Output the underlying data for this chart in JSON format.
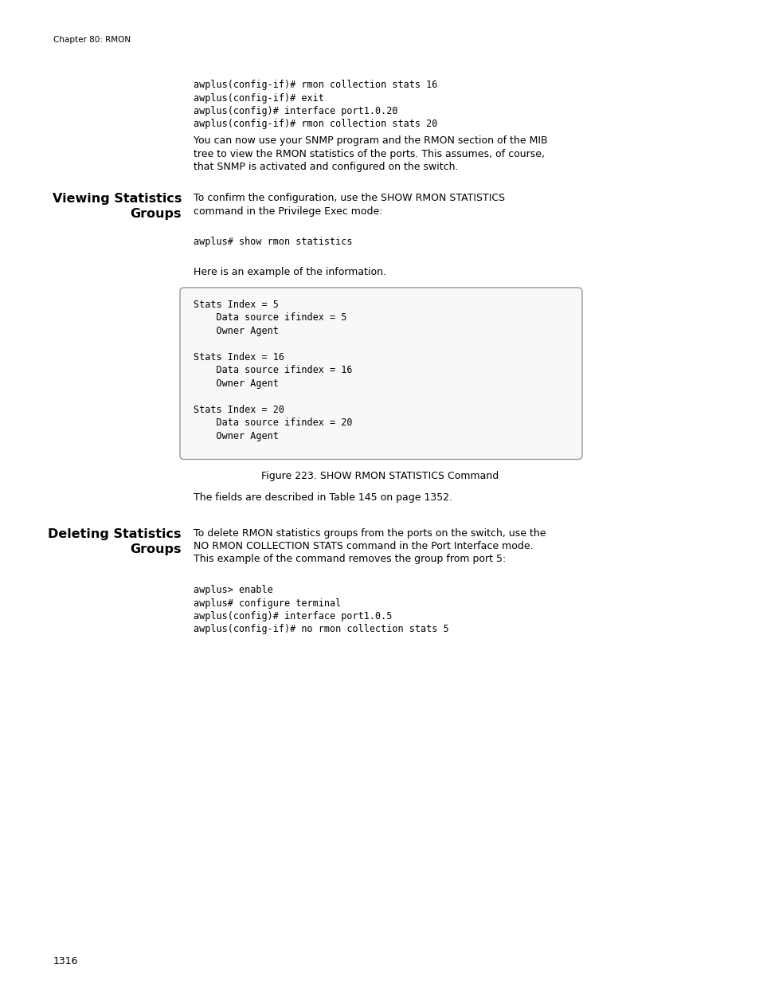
{
  "bg_color": "#ffffff",
  "page_width": 9.54,
  "page_height": 12.35,
  "dpi": 100,
  "chapter_header": "Chapter 80: RMON",
  "top_code_lines": [
    "awplus(config-if)# rmon collection stats 16",
    "awplus(config-if)# exit",
    "awplus(config)# interface port1.0.20",
    "awplus(config-if)# rmon collection stats 20"
  ],
  "para1_lines": [
    "You can now use your SNMP program and the RMON section of the MIB",
    "tree to view the RMON statistics of the ports. This assumes, of course,",
    "that SNMP is activated and configured on the switch."
  ],
  "section1_heading1": "Viewing Statistics",
  "section1_heading2": "Groups",
  "section1_para_lines": [
    "To confirm the configuration, use the SHOW RMON STATISTICS",
    "command in the Privilege Exec mode:"
  ],
  "show_cmd_line": "awplus# show rmon statistics",
  "here_text": "Here is an example of the information.",
  "box_content": [
    "Stats Index = 5",
    "    Data source ifindex = 5",
    "    Owner Agent",
    "",
    "Stats Index = 16",
    "    Data source ifindex = 16",
    "    Owner Agent",
    "",
    "Stats Index = 20",
    "    Data source ifindex = 20",
    "    Owner Agent"
  ],
  "figure_caption": "Figure 223. SHOW RMON STATISTICS Command",
  "fields_text": "The fields are described in Table 145 on page 1352.",
  "section2_heading1": "Deleting Statistics",
  "section2_heading2": "Groups",
  "section2_para_lines": [
    "To delete RMON statistics groups from the ports on the switch, use the",
    "NO RMON COLLECTION STATS command in the Port Interface mode.",
    "This example of the command removes the group from port 5:"
  ],
  "del_code_lines": [
    "awplus> enable",
    "awplus# configure terminal",
    "awplus(config)# interface port1.0.5",
    "awplus(config-if)# no rmon collection stats 5"
  ],
  "page_number": "1316"
}
